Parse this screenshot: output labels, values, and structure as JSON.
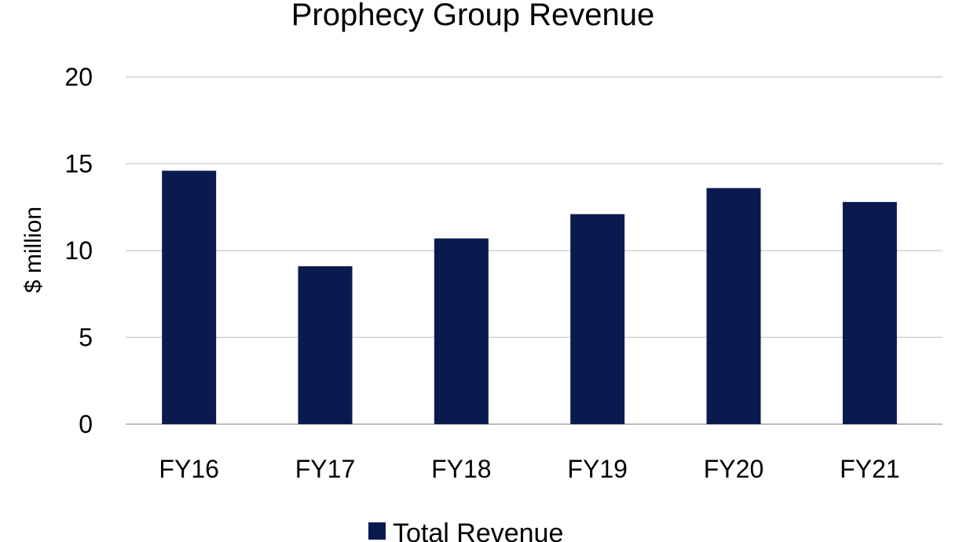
{
  "chart_data": {
    "type": "bar",
    "title": "Prophecy Group Revenue",
    "xlabel": "",
    "ylabel": "$ million",
    "categories": [
      "FY16",
      "FY17",
      "FY18",
      "FY19",
      "FY20",
      "FY21"
    ],
    "series": [
      {
        "name": "Total Revenue",
        "values": [
          14.6,
          9.1,
          10.7,
          12.1,
          13.6,
          12.8
        ]
      }
    ],
    "yticks": [
      "0",
      "5",
      "10",
      "15",
      "20"
    ],
    "ylim": [
      0,
      20
    ],
    "grid": true,
    "legend": "bottom",
    "colors": {
      "bar": "#0b1a4e",
      "grid": "#d0d0d0",
      "axis": "#bfbfbf"
    }
  }
}
